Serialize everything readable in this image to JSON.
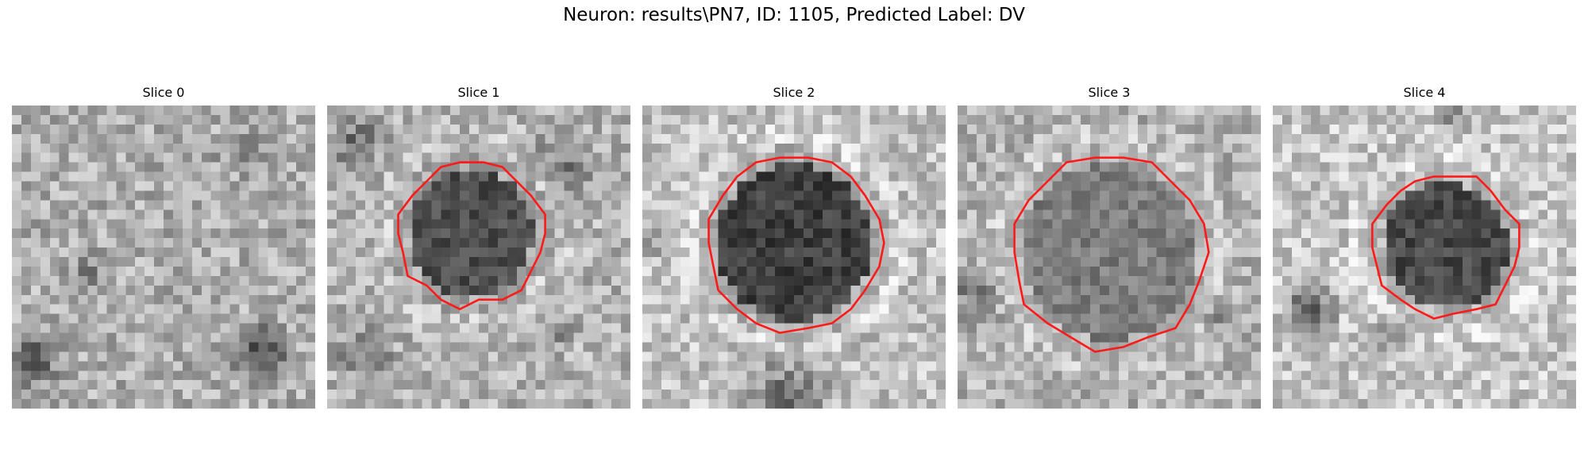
{
  "figure": {
    "title": "Neuron: results\\PN7, ID: 1105, Predicted Label: DV"
  },
  "slices": [
    {
      "title": "Slice 0",
      "has_contour": false
    },
    {
      "title": "Slice 1",
      "has_contour": true
    },
    {
      "title": "Slice 2",
      "has_contour": true
    },
    {
      "title": "Slice 3",
      "has_contour": true
    },
    {
      "title": "Slice 4",
      "has_contour": true
    }
  ],
  "colors": {
    "contour": "#ff1a1a",
    "background": "#ffffff"
  }
}
